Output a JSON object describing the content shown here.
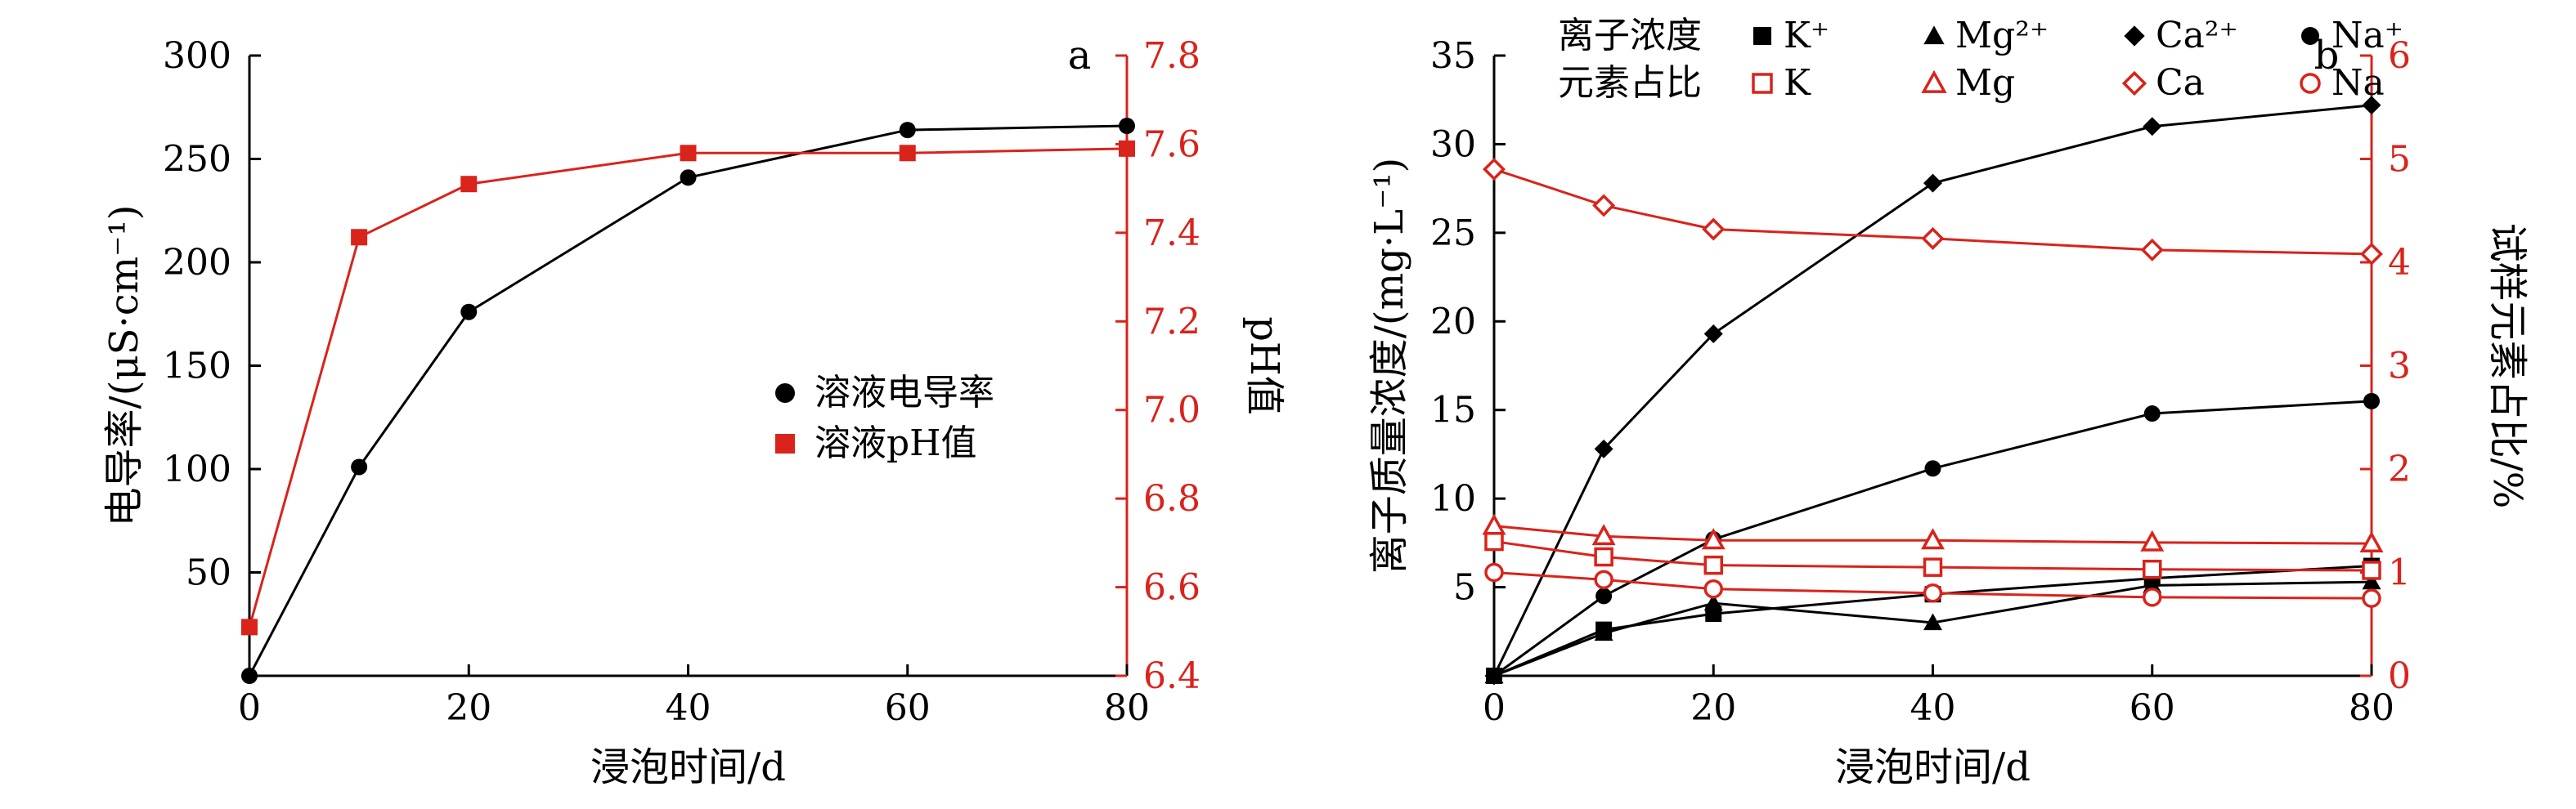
{
  "colors": {
    "black": "#000000",
    "red": "#d9231b"
  },
  "chart_data": [
    {
      "panel": "a",
      "type": "line",
      "xlabel": "浸泡时间/d",
      "ylabel_left": "电导率/(μS·cm⁻¹)",
      "ylabel_right": "pH值",
      "xlim": [
        0,
        80
      ],
      "xticks": [
        0,
        20,
        40,
        60,
        80
      ],
      "ylim_left": [
        0,
        300
      ],
      "yticks_left": [
        50,
        100,
        150,
        200,
        250,
        300
      ],
      "ylim_right": [
        6.4,
        7.8
      ],
      "yticks_right": [
        "6.4",
        "6.6",
        "6.8",
        "7.0",
        "7.2",
        "7.4",
        "7.6",
        "7.8"
      ],
      "grid": false,
      "legend_position": "center-right",
      "series": [
        {
          "name": "溶液电导率",
          "axis": "left",
          "color": "#000000",
          "marker": "circle-filled",
          "x": [
            0,
            10,
            20,
            40,
            60,
            80
          ],
          "y": [
            0,
            101,
            176,
            241,
            264,
            266
          ]
        },
        {
          "name": "溶液pH值",
          "axis": "right",
          "color": "#d9231b",
          "marker": "square-filled",
          "x": [
            0,
            10,
            20,
            40,
            60,
            80
          ],
          "y": [
            6.51,
            7.39,
            7.51,
            7.58,
            7.58,
            7.59
          ]
        }
      ]
    },
    {
      "panel": "b",
      "type": "line",
      "xlabel": "浸泡时间/d",
      "ylabel_left": "离子质量浓度/(mg·L⁻¹)",
      "ylabel_right": "试样元素占比/%",
      "xlim": [
        0,
        80
      ],
      "xticks": [
        0,
        20,
        40,
        60,
        80
      ],
      "ylim_left": [
        0,
        35
      ],
      "yticks_left": [
        5,
        10,
        15,
        20,
        25,
        30,
        35
      ],
      "ylim_right": [
        0,
        6
      ],
      "yticks_right": [
        0,
        1,
        2,
        3,
        4,
        5,
        6
      ],
      "grid": false,
      "legend_position": "top-left",
      "legend_group_labels": [
        "离子浓度",
        "元素占比"
      ],
      "series": [
        {
          "name": "K⁺",
          "axis": "left",
          "color": "#000000",
          "marker": "square-filled",
          "x": [
            0,
            10,
            20,
            40,
            60,
            80
          ],
          "y": [
            0,
            2.6,
            3.5,
            4.6,
            5.5,
            6.2
          ]
        },
        {
          "name": "Mg²⁺",
          "axis": "left",
          "color": "#000000",
          "marker": "triangle-filled",
          "x": [
            0,
            10,
            20,
            40,
            60,
            80
          ],
          "y": [
            0,
            2.4,
            4.1,
            3.0,
            5.1,
            5.3
          ]
        },
        {
          "name": "Ca²⁺",
          "axis": "left",
          "color": "#000000",
          "marker": "diamond-filled",
          "x": [
            0,
            10,
            20,
            40,
            60,
            80
          ],
          "y": [
            0,
            12.8,
            19.3,
            27.8,
            31.0,
            32.2
          ]
        },
        {
          "name": "Na⁺",
          "axis": "left",
          "color": "#000000",
          "marker": "circle-filled",
          "x": [
            0,
            10,
            20,
            40,
            60,
            80
          ],
          "y": [
            0,
            4.5,
            7.7,
            11.7,
            14.8,
            15.5
          ]
        },
        {
          "name": "K",
          "axis": "right",
          "color": "#d9231b",
          "marker": "square-open",
          "x": [
            0,
            10,
            20,
            40,
            60,
            80
          ],
          "y": [
            1.3,
            1.15,
            1.07,
            1.05,
            1.03,
            1.02
          ]
        },
        {
          "name": "Mg",
          "axis": "right",
          "color": "#d9231b",
          "marker": "triangle-open",
          "x": [
            0,
            10,
            20,
            40,
            60,
            80
          ],
          "y": [
            1.45,
            1.35,
            1.31,
            1.31,
            1.29,
            1.28
          ]
        },
        {
          "name": "Ca",
          "axis": "right",
          "color": "#d9231b",
          "marker": "diamond-open",
          "x": [
            0,
            10,
            20,
            40,
            60,
            80
          ],
          "y": [
            4.9,
            4.55,
            4.32,
            4.23,
            4.12,
            4.08
          ]
        },
        {
          "name": "Na",
          "axis": "right",
          "color": "#d9231b",
          "marker": "circle-open",
          "x": [
            0,
            10,
            20,
            40,
            60,
            80
          ],
          "y": [
            1.0,
            0.93,
            0.84,
            0.8,
            0.76,
            0.75
          ]
        }
      ]
    }
  ]
}
